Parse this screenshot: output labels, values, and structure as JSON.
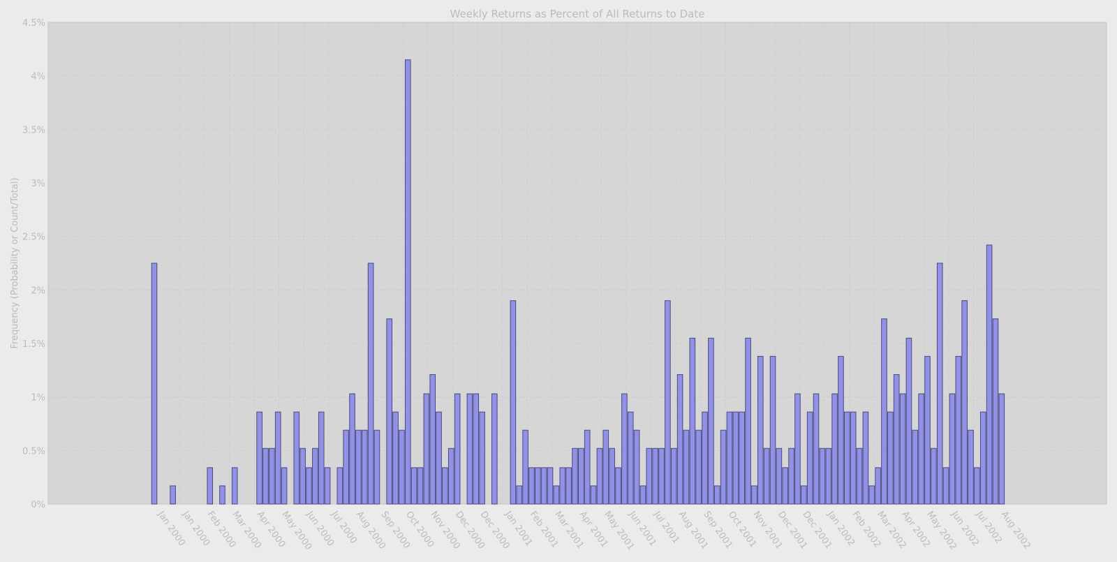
{
  "colors": {
    "page_background": "#ebebeb",
    "plot_background": "#d6d6d6",
    "bar_fill": "#9191e8",
    "bar_edge": "#4a4a7a",
    "text": "#bbbbbb",
    "grid": "#c6c6c6"
  },
  "chart_data": {
    "type": "bar",
    "title": "Weekly Returns as Percent of All Returns to Date",
    "xlabel": "",
    "ylabel": "Frequency (Probability or Count/Total)",
    "ylim": [
      0,
      4.5
    ],
    "y_ticks": [
      {
        "v": 0,
        "label": "0%"
      },
      {
        "v": 0.5,
        "label": "0.5%"
      },
      {
        "v": 1,
        "label": "1%"
      },
      {
        "v": 1.5,
        "label": "1.5%"
      },
      {
        "v": 2,
        "label": "2%"
      },
      {
        "v": 2.5,
        "label": "2.5%"
      },
      {
        "v": 3,
        "label": "3%"
      },
      {
        "v": 3.5,
        "label": "3.5%"
      },
      {
        "v": 4,
        "label": "4%"
      },
      {
        "v": 4.5,
        "label": "4.5%"
      }
    ],
    "x_tick_labels": [
      "Jan 2000",
      "Jan 2000",
      "Feb 2000",
      "Mar 2000",
      "Apr 2000",
      "May 2000",
      "Jun 2000",
      "Jul 2000",
      "Aug 2000",
      "Sep 2000",
      "Oct 2000",
      "Nov 2000",
      "Dec 2000",
      "Dec 2000",
      "Jan 2001",
      "Feb 2001",
      "Mar 2001",
      "Apr 2001",
      "May 2001",
      "Jun 2001",
      "Jul 2001",
      "Aug 2001",
      "Sep 2001",
      "Oct 2001",
      "Nov 2001",
      "Dec 2001",
      "Dec 2001",
      "Jan 2002",
      "Feb 2002",
      "Mar 2002",
      "Apr 2002",
      "May 2002",
      "Jun 2002",
      "Jul 2002",
      "Aug 2002"
    ],
    "grid": true,
    "legend": "none",
    "series": [
      {
        "values": [
          2.25,
          0,
          0,
          0.17,
          0,
          0,
          0,
          0,
          0,
          0.34,
          0,
          0.17,
          0,
          0.34,
          0,
          0,
          0,
          0.86,
          0.52,
          0.52,
          0.86,
          0.34,
          0,
          0.86,
          0.52,
          0.34,
          0.52,
          0.86,
          0.34,
          0,
          0.34,
          0.69,
          1.03,
          0.69,
          0.69,
          2.25,
          0.69,
          0,
          1.73,
          0.86,
          0.69,
          4.15,
          0.34,
          0.34,
          1.03,
          1.21,
          0.86,
          0.34,
          0.52,
          1.03,
          0,
          1.03,
          1.03,
          0.86,
          0,
          1.03,
          0,
          0,
          1.9,
          0.17,
          0.69,
          0.34,
          0.34,
          0.34,
          0.34,
          0.17,
          0.34,
          0.34,
          0.52,
          0.52,
          0.69,
          0.17,
          0.52,
          0.69,
          0.52,
          0.34,
          1.03,
          0.86,
          0.69,
          0.17,
          0.52,
          0.52,
          0.52,
          1.9,
          0.52,
          1.21,
          0.69,
          1.55,
          0.69,
          0.86,
          1.55,
          0.17,
          0.69,
          0.86,
          0.86,
          0.86,
          1.55,
          0.17,
          1.38,
          0.52,
          1.38,
          0.52,
          0.34,
          0.52,
          1.03,
          0.17,
          0.86,
          1.03,
          0.52,
          0.52,
          1.03,
          1.38,
          0.86,
          0.86,
          0.52,
          0.86,
          0.17,
          0.34,
          1.73,
          0.86,
          1.21,
          1.03,
          1.55,
          0.69,
          1.03,
          1.38,
          0.52,
          2.25,
          0.34,
          1.03,
          1.38,
          1.9,
          0.69,
          0.34,
          0.86,
          2.42,
          1.73,
          1.03
        ]
      }
    ]
  }
}
